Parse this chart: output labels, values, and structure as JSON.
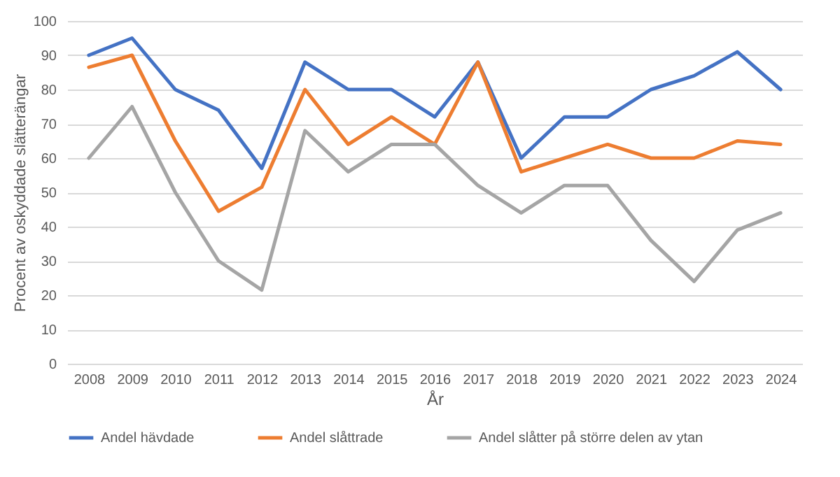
{
  "chart_data": {
    "type": "line",
    "xlabel": "År",
    "ylabel": "Procent av oskyddade slätterängar",
    "categories": [
      "2008",
      "2009",
      "2010",
      "2011",
      "2012",
      "2013",
      "2014",
      "2015",
      "2016",
      "2017",
      "2018",
      "2019",
      "2020",
      "2021",
      "2022",
      "2023",
      "2024"
    ],
    "series": [
      {
        "name": "Andel hävdade",
        "color": "#4472c4",
        "values": [
          90,
          95,
          80,
          74,
          57,
          88,
          80,
          80,
          72,
          88,
          60,
          72,
          72,
          80,
          84,
          91,
          80
        ]
      },
      {
        "name": "Andel slåttrade",
        "color": "#ed7d31",
        "values": [
          86.5,
          90,
          65,
          44.5,
          51.5,
          80,
          64,
          72,
          64,
          88,
          56,
          60,
          64,
          60,
          60,
          65,
          64
        ]
      },
      {
        "name": "Andel slåtter på större delen av ytan",
        "color": "#a5a5a5",
        "values": [
          60,
          75,
          50,
          30,
          21.5,
          68,
          56,
          64,
          64,
          52,
          44,
          52,
          52,
          36,
          24,
          39,
          44
        ]
      }
    ],
    "ylim": [
      0,
      100
    ],
    "yticks": [
      0,
      10,
      20,
      30,
      40,
      50,
      60,
      70,
      80,
      90,
      100
    ],
    "grid": "y",
    "legend": "bottom",
    "marker": "none",
    "line_style": "solid"
  }
}
